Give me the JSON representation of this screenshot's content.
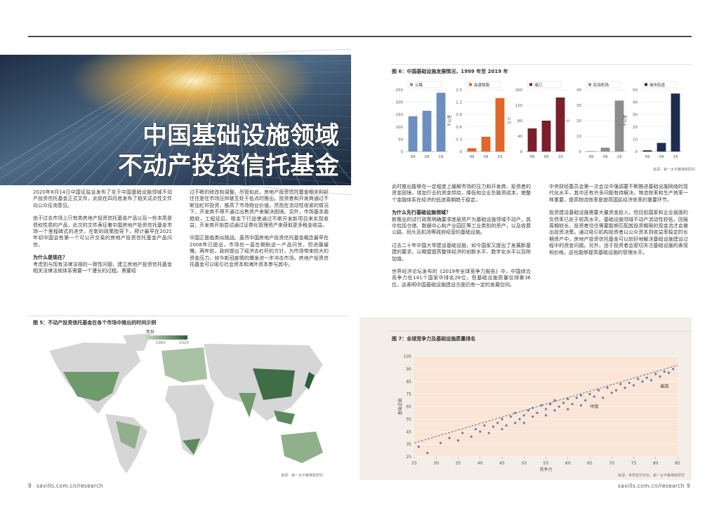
{
  "left_page": {
    "hero_title": [
      "中国基础设施领域",
      "不动产投资信托基金"
    ],
    "col1": [
      "2020年8月14日中国证监会发布了关于中国基础设施领域不动产投资信托基金正式文件，此前在四月底发布了相关试点性文件向公众征询意见。",
      "由于过去市场上只有类房地产投资信托基金产品以及一些本质是债权性质的产品，此次的文件表征着中国房地产投资信托基金市场一个里程碑式的进步。在新的政策指导下，预计最早在2021年初中国会有第一个可公开交易的房地产投资信托基金产品问世。",
      "为什么是现在？",
      "考虑到与现有法律法规的一致性问题，建立房地产投资信托基金相关法律法规体系需要一个漫长的过程。需要经"
    ],
    "col2": [
      "过不断的修改和调整。尽管如此，房地产投资信托基金相关利好往往是在市场压抑甚至处于低点时推出。投资者和开发商通过不断加杠杆投资，推高了市场物业价值，然而在流动性收紧的情况下，开发商不得不通过出售资产来解决困境。另外，市场基本面趋软，工程延后，租金下行迫使通过不断开发新项目来实现收益；开发商开始尝试通过证券化管理资产来获取更多租金收益。",
      "中国正面临类似挑战。虽然中国房地产投资信托基金概念最早在2008年已提出，市场也一直在期盼这一产品问世，但进展缓慢。两年前，政府提出了经济去杠杆的方针，为市场带来较大的资金压力，如今新冠疫情的爆发进一步冲击市场。房地产投资信托基金可以吸引社会资本和海外资本参与其中。"
    ],
    "figure5": {
      "caption": "图 5：不动产投资信托基金在各个市场中推出的时间示例",
      "legend_title": "年份",
      "legend_min": "1960",
      "legend_max": "2020",
      "source": "来源：第一太平戴维斯研究"
    },
    "footer_page": "8",
    "footer_url": "savills.com.cn/research"
  },
  "right_page": {
    "figure6": {
      "caption": "图 6：中国基础设施发展情况，1999 年至 2019 年",
      "categories": [
        "99",
        "09",
        "19"
      ],
      "charts": [
        {
          "legend": "公路",
          "color": "#6d8fc0",
          "values": [
            143,
            165,
            238
          ],
          "ylim": [
            0,
            250
          ],
          "yticks": [
            0,
            50,
            100,
            150,
            200,
            250
          ]
        },
        {
          "legend": "高速铁路",
          "unit": "千公里",
          "color": "#e0662a",
          "values": [
            0.08,
            0.36,
            1.3
          ],
          "ylim": [
            0,
            1.5
          ],
          "yticks": [
            0,
            0.3,
            0.6,
            0.9,
            1.2,
            1.5
          ]
        },
        {
          "legend": "港口",
          "unit": "万个",
          "color": "#7a1f2b",
          "values": [
            60,
            80,
            140
          ],
          "ylim": [
            0,
            160
          ],
          "yticks": [
            0,
            40,
            80,
            120,
            160
          ]
        },
        {
          "legend": "民用机场",
          "unit": "个",
          "color": "#8c8c8c",
          "values": [
            0.3,
            2.5,
            33
          ],
          "ylim": [
            0,
            40
          ],
          "yticks": [
            0,
            10,
            20,
            30,
            40
          ]
        },
        {
          "legend": "城市轨道",
          "unit": "千公里",
          "color": "#1f2d4d",
          "values": [
            1,
            7,
            47
          ],
          "ylim": [
            0,
            50
          ],
          "yticks": [
            0,
            10,
            20,
            30,
            40,
            50
          ]
        }
      ],
      "source": "来源：第一太平戴维斯研究"
    },
    "col1": [
      "此时推出能够在一定程度上缓解市场的压力和开发商、投资者的资金困境，增加行业的资金供给，降低和企业负融资成本，使整个金融体系在经济的低迷周期趋于稳定。",
      "为什么先行基础设施领域？",
      "新推出的试行政策明确要求底层资产为基础设施领域不动产，其中包括仓储、数据中心和产业园区等工业类别的资产，以及收费公路、码头及机场等政府经营的基础设施。",
      "过去二十年中国大举建设基础设施，如今国家又提出了发展新基建的要求，以期望提高整体经济的创新水平、数字化水平以及附加值。",
      "世界经济论坛发布的《2019年全球竞争力报告》中，中国综合竞争力在141个国家中排名28位，但基础设施质量仅排第36位，这表明中国基础设施建设方面仍有一定的发展空间。"
    ],
    "col2": [
      "中央财经委员会第一次会议中强调要不断推进基础设施网络的现代化水平，其中还有许多问题有待解决，物流效率和生产效率一样重要，提高物流效率是提高国民经济效率的重要环节。",
      "投资建设基础设施需要大量资金投入，但目前国家和企业层面的负债率已处于较高水平。基础设施领域不动产流动性较低，回报周期较长，投资者往往需要能够匹配其投资期限的现金流才会做出投资决策。通过吸引机构投资者以公众资本到收益率稳定的长期资产中，房地产投资信托基金可以较好地解决基础设施建设过程中的资金问题。另外，由于投资者会密切关注基础设施的表现和价格，这也能够提高基础设施的管理水平。"
    ],
    "figure7": {
      "caption": "图 7：全球竞争力及基础设施质量排名",
      "x_label": "竞争力",
      "y_label": "基础设施",
      "xlim": [
        25,
        85
      ],
      "xticks": [
        25,
        30,
        35,
        40,
        45,
        50,
        55,
        60,
        65,
        70,
        75,
        80,
        85
      ],
      "ylim": [
        25,
        105
      ],
      "yticks": [
        25,
        35,
        45,
        55,
        65,
        75,
        85,
        95,
        105
      ],
      "x": [
        26,
        28,
        31,
        33,
        35,
        36,
        38,
        39,
        40,
        41,
        42,
        43,
        44,
        45,
        45,
        46,
        47,
        48,
        48,
        49,
        50,
        50,
        51,
        52,
        52,
        53,
        54,
        55,
        55,
        56,
        57,
        57,
        58,
        59,
        60,
        60,
        61,
        62,
        63,
        63,
        64,
        65,
        66,
        67,
        68,
        69,
        70,
        71,
        72,
        73,
        74,
        75,
        76,
        77,
        78,
        79,
        80,
        81,
        82,
        83,
        84
      ],
      "y": [
        33,
        28,
        36,
        40,
        38,
        44,
        41,
        47,
        45,
        50,
        44,
        49,
        52,
        47,
        55,
        50,
        57,
        52,
        60,
        55,
        58,
        52,
        62,
        57,
        64,
        60,
        66,
        58,
        63,
        67,
        62,
        70,
        65,
        68,
        63,
        71,
        67,
        72,
        66,
        74,
        70,
        75,
        73,
        78,
        72,
        80,
        76,
        78,
        83,
        80,
        84,
        82,
        87,
        85,
        88,
        86,
        91,
        89,
        93,
        92,
        95
      ],
      "trend": {
        "x": [
          25,
          85
        ],
        "y": [
          36,
          98
        ]
      },
      "annotations": [
        "中国",
        "美国"
      ],
      "source": "来源：世界经济论坛，第一太平戴维斯研究"
    },
    "footer_url": "savills.com.cn/research",
    "footer_page": "9"
  }
}
